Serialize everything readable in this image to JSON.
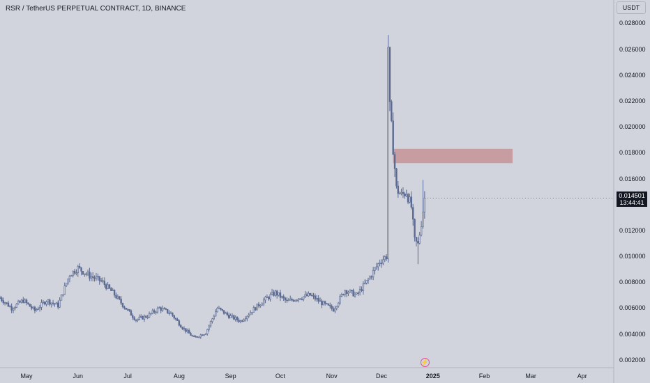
{
  "header": {
    "title": "RSR / TetherUS PERPETUAL CONTRACT, 1D, BINANCE"
  },
  "price_axis": {
    "unit": "USDT",
    "ticks": [
      "0.028000",
      "0.026000",
      "0.024000",
      "0.022000",
      "0.020000",
      "0.018000",
      "0.016000",
      "0.014000",
      "0.012000",
      "0.010000",
      "0.008000",
      "0.006000",
      "0.004000",
      "0.002000"
    ]
  },
  "time_axis": {
    "ticks": [
      "May",
      "Jun",
      "Jul",
      "Aug",
      "Sep",
      "Oct",
      "Nov",
      "Dec",
      "2025",
      "Feb",
      "Mar",
      "Apr"
    ]
  },
  "last_price": {
    "value": "0.014501",
    "countdown": "13:44:41"
  },
  "colors": {
    "candle": "#5b6a92",
    "zone": "#c48e93",
    "price_tag": "#131722",
    "flash": "#e84b9c"
  },
  "icons": {
    "flash": "flash-icon"
  },
  "chart_data": {
    "type": "candlestick",
    "title": "RSR / TetherUS PERPETUAL CONTRACT, 1D, BINANCE",
    "ylabel": "USDT",
    "ylim": [
      0.0014,
      0.0298
    ],
    "xlim": [
      "2024-04-15",
      "2025-04-20"
    ],
    "grid": false,
    "price_series": [
      [
        "2024-04-15",
        0.0068
      ],
      [
        "2024-04-22",
        0.006
      ],
      [
        "2024-04-29",
        0.0066
      ],
      [
        "2024-05-06",
        0.0058
      ],
      [
        "2024-05-13",
        0.0066
      ],
      [
        "2024-05-20",
        0.0062
      ],
      [
        "2024-05-27",
        0.0086
      ],
      [
        "2024-06-01",
        0.0091
      ],
      [
        "2024-06-08",
        0.0085
      ],
      [
        "2024-06-15",
        0.0081
      ],
      [
        "2024-06-22",
        0.0072
      ],
      [
        "2024-06-29",
        0.0061
      ],
      [
        "2024-07-06",
        0.0051
      ],
      [
        "2024-07-13",
        0.0054
      ],
      [
        "2024-07-20",
        0.006
      ],
      [
        "2024-07-27",
        0.0056
      ],
      [
        "2024-08-03",
        0.0045
      ],
      [
        "2024-08-10",
        0.0037
      ],
      [
        "2024-08-17",
        0.0041
      ],
      [
        "2024-08-24",
        0.006
      ],
      [
        "2024-08-31",
        0.0054
      ],
      [
        "2024-09-07",
        0.005
      ],
      [
        "2024-09-14",
        0.0058
      ],
      [
        "2024-09-21",
        0.0066
      ],
      [
        "2024-09-28",
        0.0072
      ],
      [
        "2024-10-05",
        0.0065
      ],
      [
        "2024-10-12",
        0.0068
      ],
      [
        "2024-10-19",
        0.007
      ],
      [
        "2024-10-26",
        0.0064
      ],
      [
        "2024-11-02",
        0.0059
      ],
      [
        "2024-11-09",
        0.0074
      ],
      [
        "2024-11-16",
        0.007
      ],
      [
        "2024-11-23",
        0.0082
      ],
      [
        "2024-11-30",
        0.0096
      ],
      [
        "2024-12-04",
        0.01
      ],
      [
        "2024-12-05",
        0.0262
      ],
      [
        "2024-12-06",
        0.0214
      ],
      [
        "2024-12-08",
        0.0184
      ],
      [
        "2024-12-10",
        0.0152
      ],
      [
        "2024-12-13",
        0.0147
      ],
      [
        "2024-12-16",
        0.015
      ],
      [
        "2024-12-19",
        0.0138
      ],
      [
        "2024-12-21",
        0.0112
      ],
      [
        "2024-12-23",
        0.0109
      ],
      [
        "2024-12-25",
        0.0126
      ],
      [
        "2024-12-27",
        0.0145
      ]
    ],
    "max_high": 0.0271,
    "zones": [
      {
        "from": "2024-12-08",
        "to": "2025-02-18",
        "low": 0.0172,
        "high": 0.0183
      }
    ],
    "last_price": 0.014501
  }
}
